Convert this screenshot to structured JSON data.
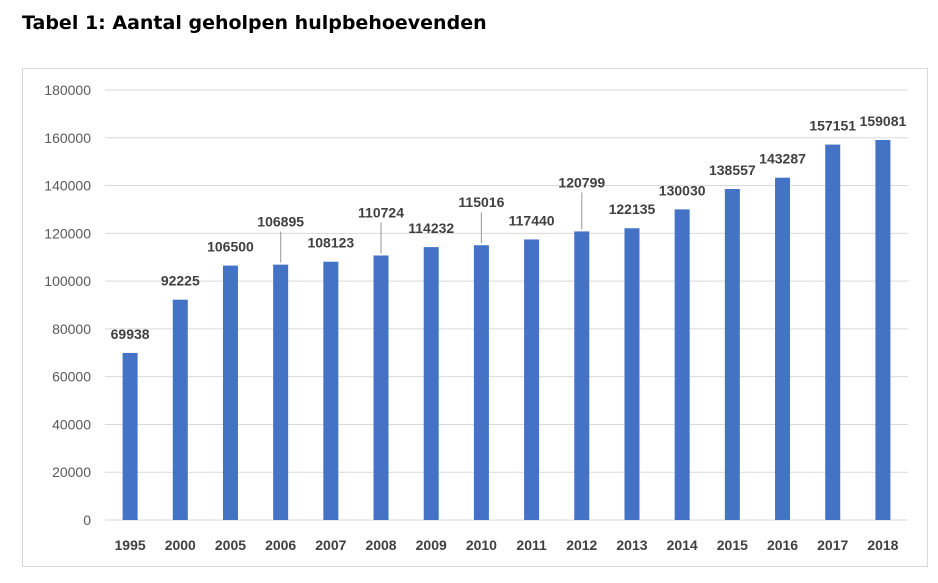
{
  "page": {
    "title": "Tabel 1: Aantal geholpen hulpbehoevenden"
  },
  "colors": {
    "bar": "#4472C4",
    "grid": "#d9d9d9",
    "leader": "#a6a6a6"
  },
  "chart_data": {
    "type": "bar",
    "title": "",
    "xlabel": "",
    "ylabel": "",
    "ylim": [
      0,
      180000
    ],
    "yticks": [
      0,
      20000,
      40000,
      60000,
      80000,
      100000,
      120000,
      140000,
      160000,
      180000
    ],
    "grid": true,
    "legend": "none",
    "categories": [
      "1995",
      "2000",
      "2005",
      "2006",
      "2007",
      "2008",
      "2009",
      "2010",
      "2011",
      "2012",
      "2013",
      "2014",
      "2015",
      "2016",
      "2017",
      "2018"
    ],
    "series": [
      {
        "values": [
          69938,
          92225,
          106500,
          106895,
          108123,
          110724,
          114232,
          115016,
          117440,
          120799,
          122135,
          130030,
          138557,
          143287,
          157151,
          159081
        ]
      }
    ]
  }
}
